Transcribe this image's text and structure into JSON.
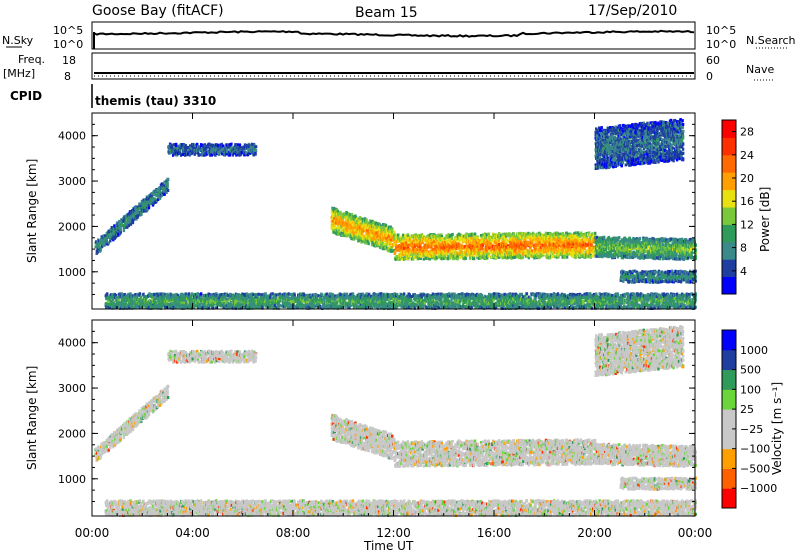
{
  "header": {
    "station": "Goose Bay (fitACF)",
    "beam": "Beam 15",
    "date": "17/Sep/2010"
  },
  "top_panels": {
    "nsky_label": "N.Sky",
    "nsky_ticks": [
      "10^5",
      "10^0"
    ],
    "nsearch_label": "N.Search",
    "nsearch_ticks": [
      "10^5",
      "10^0"
    ],
    "freq_label_line1": "Freq.",
    "freq_label_line2": "[MHz]",
    "freq_ticks": [
      "18",
      "8"
    ],
    "nave_label": "Nave",
    "nave_ticks": [
      "60",
      "0"
    ],
    "cpid_label": "CPID",
    "cpid_text": "themis (tau) 3310"
  },
  "colors": {
    "power_scale": [
      "#0000ff",
      "#1f3fa0",
      "#3a8a8a",
      "#2f9a5a",
      "#7ac83c",
      "#e8e010",
      "#ffa000",
      "#ff6a00",
      "#ff3000",
      "#ff0000"
    ],
    "velocity_scale": [
      "#ff0000",
      "#ff6000",
      "#ffa000",
      "#c8c8c8",
      "#c8c8c8",
      "#6ad63c",
      "#2f9a5a",
      "#1f3fa0",
      "#0000ff"
    ]
  },
  "chart_data": [
    {
      "type": "heatmap",
      "name": "Power panel",
      "xlabel": "",
      "ylabel": "Slant Range [km]",
      "yticks": [
        "1000",
        "2000",
        "3000",
        "4000"
      ],
      "xlim_hours": [
        0,
        24
      ],
      "ylim_km": [
        180,
        4500
      ],
      "colorbar": {
        "label": "Power [dB]",
        "ticks": [
          "4",
          "8",
          "12",
          "16",
          "20",
          "24",
          "28"
        ],
        "range": [
          0,
          30
        ]
      },
      "echo_regions": [
        {
          "t_start": 0.1,
          "t_end": 3.0,
          "r_low_start": 1400,
          "r_low_end": 2800,
          "width_km": 300,
          "power_db": 8
        },
        {
          "t_start": 3.0,
          "t_end": 6.5,
          "r_low_start": 3600,
          "r_low_end": 3600,
          "width_km": 250,
          "power_db": 6
        },
        {
          "t_start": 9.5,
          "t_end": 12.0,
          "r_low_start": 1900,
          "r_low_end": 1450,
          "width_km": 550,
          "power_db": 18
        },
        {
          "t_start": 12.0,
          "t_end": 20.0,
          "r_low_start": 1300,
          "r_low_end": 1350,
          "width_km": 550,
          "power_db": 20
        },
        {
          "t_start": 20.0,
          "t_end": 24.0,
          "r_low_start": 1350,
          "r_low_end": 1300,
          "width_km": 450,
          "power_db": 12
        },
        {
          "t_start": 21.0,
          "t_end": 24.0,
          "r_low_start": 800,
          "r_low_end": 800,
          "width_km": 250,
          "power_db": 8
        },
        {
          "t_start": 0.5,
          "t_end": 24.0,
          "r_low_start": 200,
          "r_low_end": 200,
          "width_km": 350,
          "power_db": 10
        },
        {
          "t_start": 20.0,
          "t_end": 23.5,
          "r_low_start": 3300,
          "r_low_end": 3500,
          "width_km": 900,
          "power_db": 6
        }
      ]
    },
    {
      "type": "heatmap",
      "name": "Velocity panel",
      "xlabel": "Time UT",
      "ylabel": "Slant Range [km]",
      "yticks": [
        "1000",
        "2000",
        "3000",
        "4000"
      ],
      "xticks": [
        "00:00",
        "04:00",
        "08:00",
        "12:00",
        "16:00",
        "20:00",
        "00:00"
      ],
      "xlim_hours": [
        0,
        24
      ],
      "ylim_km": [
        180,
        4500
      ],
      "colorbar": {
        "label": "Velocity [m s⁻¹]",
        "ticks": [
          "1000",
          "500",
          "100",
          "25",
          "−25",
          "−100",
          "−500",
          "−1000"
        ]
      },
      "echo_regions_same_as_power": true,
      "dominant_velocity": "near zero (grey)"
    }
  ]
}
